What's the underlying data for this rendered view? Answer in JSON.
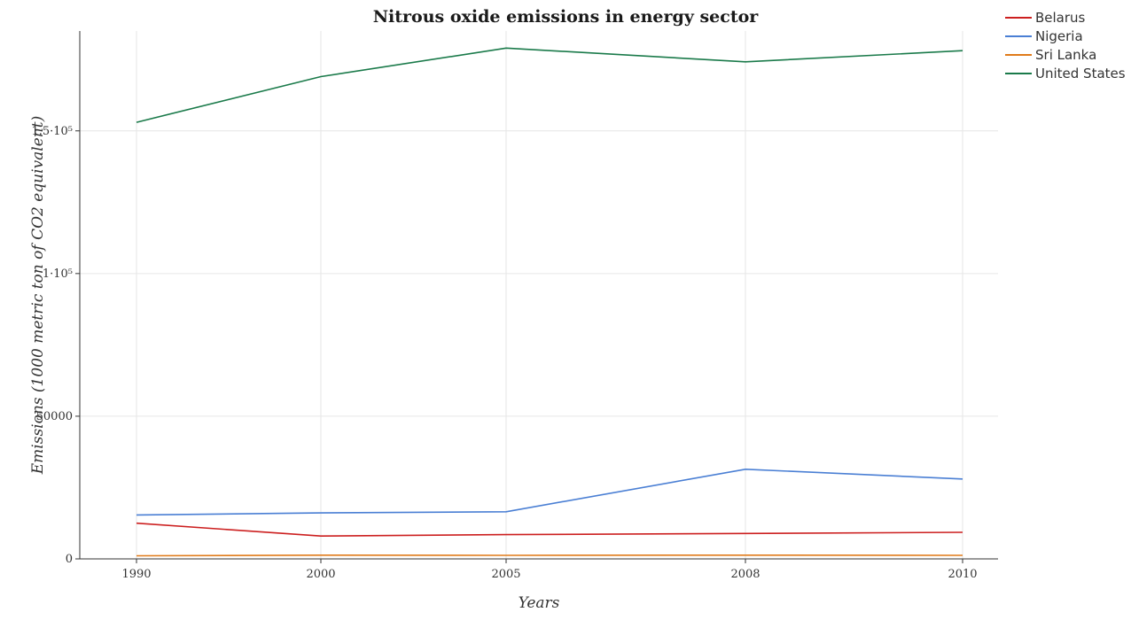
{
  "chart_data": {
    "type": "line",
    "title": "Nitrous oxide emissions in energy sector",
    "xlabel": "Years",
    "ylabel": "Emissions (1000 metric ton of CO2 equivalent)",
    "categories": [
      "1990",
      "2000",
      "2005",
      "2008",
      "2010"
    ],
    "y_ticks": [
      "0",
      "50000",
      "1·10⁵",
      "1.5·10⁵"
    ],
    "y_tick_values": [
      0,
      50000,
      100000,
      150000
    ],
    "ylim": [
      0,
      185000
    ],
    "grid": true,
    "legend_position": "top-right",
    "series": [
      {
        "name": "Belarus",
        "color": "#cc1f1f",
        "values": [
          12500,
          8000,
          8500,
          8900,
          9300
        ]
      },
      {
        "name": "Nigeria",
        "color": "#4a7fd4",
        "values": [
          15400,
          16100,
          16500,
          31400,
          28000
        ]
      },
      {
        "name": "Sri Lanka",
        "color": "#e07b1a",
        "values": [
          1100,
          1300,
          1250,
          1300,
          1250
        ]
      },
      {
        "name": "United States",
        "color": "#1a7a4a",
        "values": [
          153000,
          169000,
          179000,
          174200,
          178100
        ]
      }
    ]
  }
}
